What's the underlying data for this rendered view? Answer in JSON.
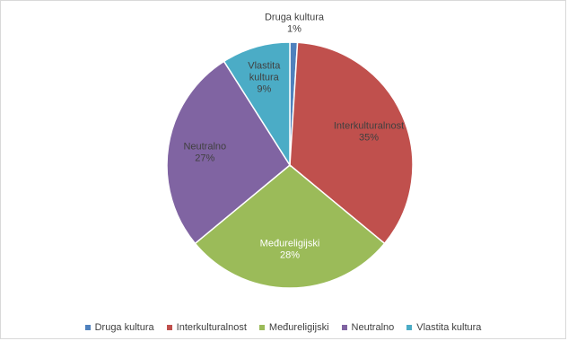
{
  "chart_data": {
    "type": "pie",
    "categories": [
      "Druga kultura",
      "Interkulturalnost",
      "Međureligijski",
      "Neutralno",
      "Vlastita kultura"
    ],
    "values": [
      1,
      35,
      28,
      27,
      9
    ],
    "value_labels": [
      "1%",
      "35%",
      "28%",
      "27%",
      "9%"
    ],
    "colors": [
      "#4F81BD",
      "#C0504D",
      "#9BBB59",
      "#8064A2",
      "#4BACC6"
    ],
    "title": "",
    "legend_position": "bottom",
    "data_labels": "category-and-percent"
  }
}
